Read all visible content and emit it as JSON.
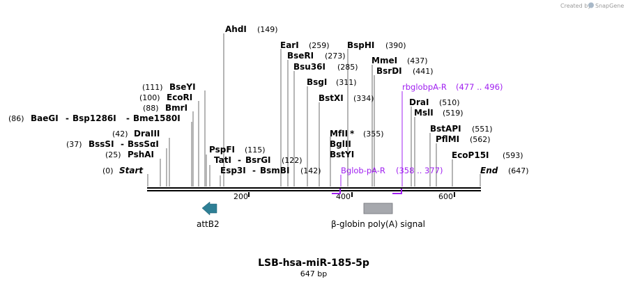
{
  "credit": {
    "prefix": "Created by",
    "brand": "SnapGene"
  },
  "map": {
    "title": "LSB-hsa-miR-185-5p",
    "length_label": "647 bp",
    "length": 647,
    "ticks": [
      "200",
      "400",
      "600"
    ],
    "start_label": "Start",
    "start_pos": "(0)",
    "end_label": "End",
    "end_pos": "(647)"
  },
  "enzymes_left": [
    {
      "name": "PshAI",
      "pos": "(25)"
    },
    {
      "name": "BssSI",
      "sep": "-",
      "name2": "BssSαI",
      "pos": "(37)"
    },
    {
      "name": "DraIII",
      "pos": "(42)"
    },
    {
      "name": "BaeGI",
      "sep": "-",
      "name2": "Bsp1286I",
      "sep2": "-",
      "name3": "Bme1580I",
      "pos": "(86)"
    },
    {
      "name": "BmrI",
      "pos": "(88)"
    },
    {
      "name": "EcoRI",
      "pos": "(100)"
    },
    {
      "name": "BseYI",
      "pos": "(111)"
    }
  ],
  "enzymes_right": [
    {
      "name": "AhdI",
      "pos": "(149)"
    },
    {
      "name": "PspFI",
      "pos": "(115)"
    },
    {
      "name": "TatI",
      "sep": "-",
      "name2": "BsrGI",
      "pos": "(122)"
    },
    {
      "name": "Esp3I",
      "sep": "-",
      "name2": "BsmBI",
      "pos": "(142)"
    },
    {
      "name": "EarI",
      "pos": "(259)"
    },
    {
      "name": "BseRI",
      "pos": "(273)"
    },
    {
      "name": "Bsu36I",
      "pos": "(285)"
    },
    {
      "name": "BsgI",
      "pos": "(311)"
    },
    {
      "name": "BstXI",
      "pos": "(334)"
    },
    {
      "name": "BspHI",
      "pos": "(390)"
    },
    {
      "name": "MmeI",
      "pos": "(437)"
    },
    {
      "name": "BsrDI",
      "pos": "(441)"
    },
    {
      "name": "MfII",
      "mark": "*",
      "pos": "(355)"
    },
    {
      "name": "BglII"
    },
    {
      "name": "BstYI"
    },
    {
      "name": "DraI",
      "pos": "(510)"
    },
    {
      "name": "MslI",
      "pos": "(519)"
    },
    {
      "name": "BstAPI",
      "pos": "(551)"
    },
    {
      "name": "PflMI",
      "pos": "(562)"
    },
    {
      "name": "EcoP15I",
      "pos": "(593)"
    }
  ],
  "primers": [
    {
      "name": "rbglobpA-R",
      "range": "(477 .. 496)"
    },
    {
      "name": "Bglob-pA-R",
      "range": "(358 .. 377)"
    }
  ],
  "features": [
    {
      "name": "attB2",
      "icon": "arrow-left-icon",
      "color": "#2e7f95"
    },
    {
      "name": "β-globin poly(A) signal",
      "icon": "box-icon",
      "color": "#a6a8ad"
    }
  ],
  "colors": {
    "primer": "#a020f0",
    "backbone": "#000000",
    "leader": "#6b6b6b"
  }
}
